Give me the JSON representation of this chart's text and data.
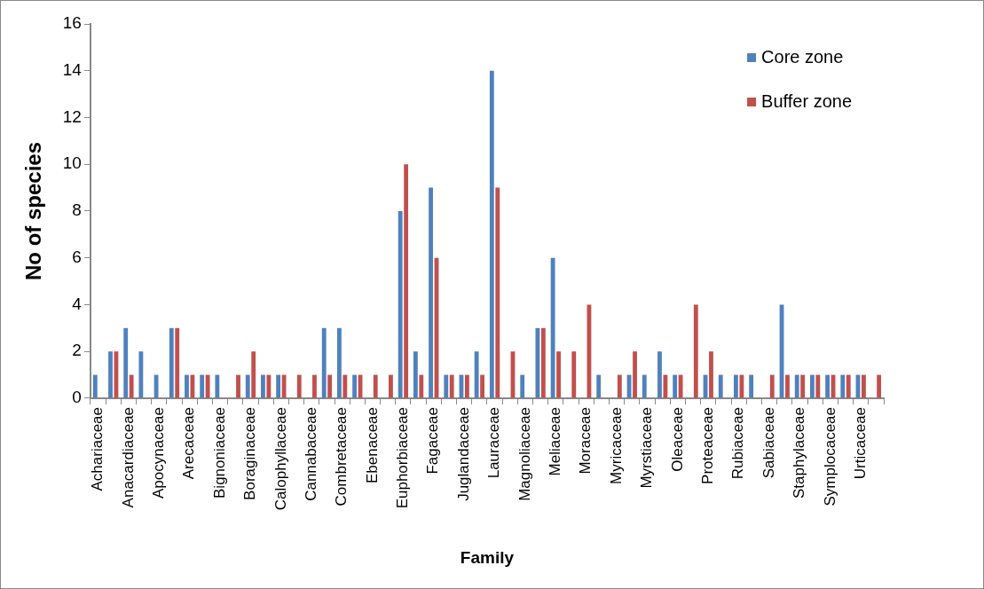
{
  "chart_data": {
    "type": "bar",
    "xlabel": "Family",
    "ylabel": "No of species",
    "categories": [
      "Achariaceae",
      null,
      "Anacardiaceae",
      null,
      "Apocynaceae",
      null,
      "Arecaceae",
      null,
      "Bignoniaceae",
      null,
      "Boraginaceae",
      null,
      "Calophyllaceae",
      null,
      "Cannabaceae",
      null,
      "Combretaceae",
      null,
      "Ebenaceae",
      null,
      "Euphorbiaceae",
      null,
      "Fagaceae",
      null,
      "Juglandaceae",
      null,
      "Lauraceae",
      null,
      "Magnoliaceae",
      null,
      "Meliaceae",
      null,
      "Moraceae",
      null,
      "Myricaceae",
      null,
      "Myrstiaceae",
      null,
      "Oleaceae",
      null,
      "Proteaceae",
      null,
      "Rubiaceae",
      null,
      "Sabiaceae",
      null,
      "Staphylaceae",
      null,
      "Symplocaceae",
      null,
      "Urticaceae",
      null
    ],
    "series": [
      {
        "name": "Core zone",
        "color": "#4f81bd",
        "values": [
          1,
          2,
          3,
          2,
          1,
          3,
          1,
          1,
          1,
          0,
          1,
          1,
          1,
          0,
          0,
          3,
          3,
          1,
          0,
          0,
          8,
          2,
          9,
          1,
          1,
          2,
          14,
          0,
          1,
          3,
          6,
          0,
          0,
          1,
          0,
          1,
          1,
          2,
          1,
          0,
          1,
          1,
          1,
          1,
          0,
          4,
          1,
          1,
          1,
          1,
          1,
          0
        ]
      },
      {
        "name": "Buffer zone",
        "color": "#c0504d",
        "values": [
          0,
          2,
          1,
          0,
          0,
          3,
          1,
          1,
          0,
          1,
          2,
          1,
          1,
          1,
          1,
          1,
          1,
          1,
          1,
          1,
          10,
          1,
          6,
          1,
          1,
          1,
          9,
          2,
          0,
          3,
          2,
          2,
          4,
          0,
          1,
          2,
          0,
          1,
          1,
          4,
          2,
          0,
          1,
          0,
          1,
          1,
          1,
          1,
          1,
          1,
          1,
          1
        ]
      }
    ],
    "ylim": [
      0,
      16
    ],
    "yticks": [
      0,
      2,
      4,
      6,
      8,
      10,
      12,
      14,
      16
    ],
    "grid": false,
    "legend": "top right"
  }
}
